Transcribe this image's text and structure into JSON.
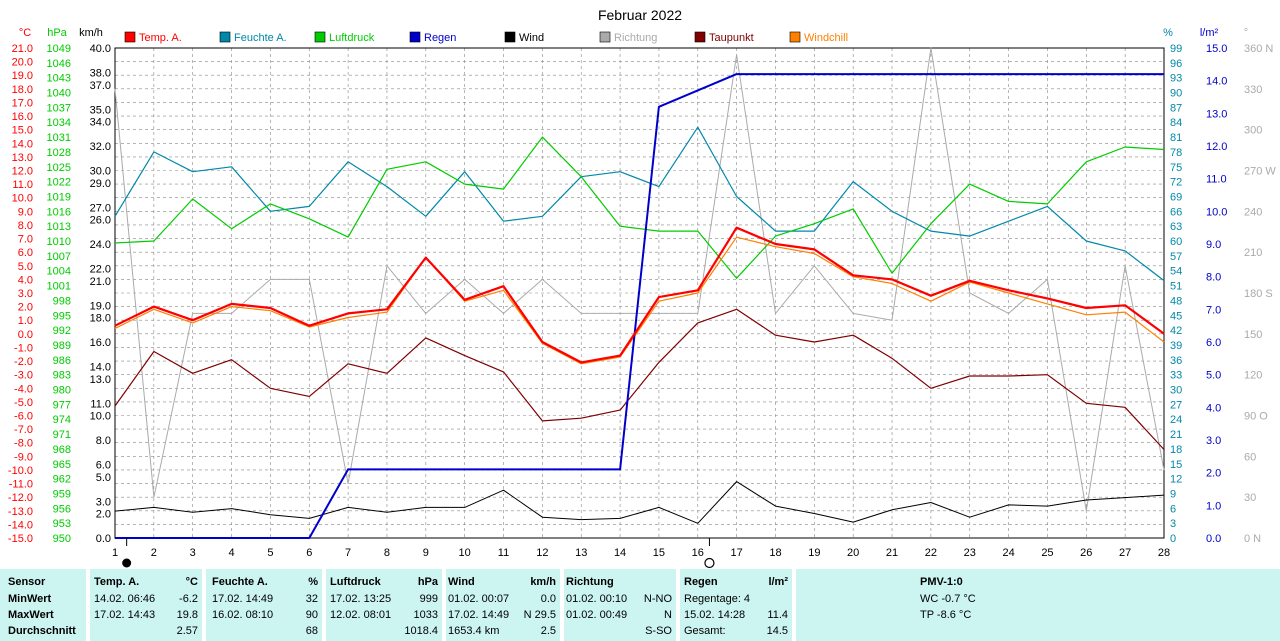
{
  "chart_data": {
    "type": "line",
    "title": "Februar 2022",
    "x": [
      1,
      2,
      3,
      4,
      5,
      6,
      7,
      8,
      9,
      10,
      11,
      12,
      13,
      14,
      15,
      16,
      17,
      18,
      19,
      20,
      21,
      22,
      23,
      24,
      25,
      26,
      27,
      28
    ],
    "xlim": [
      1,
      28
    ],
    "axes": {
      "temp": {
        "unit": "°C",
        "min": -15,
        "max": 21,
        "step": 1,
        "color": "#ff0000"
      },
      "pressure": {
        "unit": "hPa",
        "min": 950,
        "max": 1049,
        "step": 3,
        "color": "#00cc00"
      },
      "wind": {
        "unit": "km/h",
        "ticks": [
          0,
          2,
          3,
          5,
          6,
          8,
          10,
          11,
          13,
          14,
          16,
          18,
          19,
          21,
          22,
          24,
          26,
          27,
          29,
          30,
          32,
          34,
          35,
          37,
          38,
          40
        ],
        "max": 40
      },
      "humidity": {
        "unit": "%",
        "min": 0,
        "max": 99,
        "step": 3,
        "color": "#0088aa"
      },
      "rain": {
        "unit": "l/m²",
        "min": 0,
        "max": 15,
        "step": 1,
        "color": "#0000cc"
      },
      "direction": {
        "unit": "°",
        "ticks": [
          0,
          30,
          60,
          90,
          120,
          150,
          180,
          210,
          240,
          270,
          300,
          330,
          360
        ],
        "labels": [
          "0 N",
          "30",
          "60",
          "90 O",
          "120",
          "150",
          "180 S",
          "210",
          "240",
          "270 W",
          "300",
          "330",
          "360 N"
        ]
      }
    },
    "legend": [
      {
        "name": "Temp. A.",
        "color": "#ff0000"
      },
      {
        "name": "Feuchte A.",
        "color": "#0088aa"
      },
      {
        "name": "Luftdruck",
        "color": "#00cc00"
      },
      {
        "name": "Regen",
        "color": "#0000cc"
      },
      {
        "name": "Wind",
        "color": "#000000"
      },
      {
        "name": "Richtung",
        "color": "#aaaaaa"
      },
      {
        "name": "Taupunkt",
        "color": "#800000"
      },
      {
        "name": "Windchill",
        "color": "#ff8000"
      }
    ],
    "series": [
      {
        "name": "Temp. A.",
        "axis": "temp",
        "color": "#ff0000",
        "width": 2.2,
        "values": [
          0.6,
          2.0,
          1.0,
          2.2,
          1.9,
          0.6,
          1.5,
          1.8,
          5.6,
          2.5,
          3.5,
          -0.6,
          -2.1,
          -1.6,
          2.7,
          3.2,
          7.8,
          6.6,
          6.2,
          4.3,
          4.0,
          2.8,
          3.9,
          3.2,
          2.6,
          1.9,
          2.1,
          0.0
        ]
      },
      {
        "name": "Windchill",
        "axis": "temp",
        "color": "#ff8000",
        "width": 1.2,
        "values": [
          0.4,
          1.8,
          0.8,
          2.0,
          1.7,
          0.5,
          1.2,
          1.6,
          5.6,
          2.4,
          3.2,
          -0.7,
          -2.2,
          -1.7,
          2.4,
          3.0,
          7.1,
          6.4,
          5.9,
          4.2,
          3.7,
          2.4,
          3.8,
          3.0,
          2.2,
          1.4,
          1.6,
          -0.6
        ]
      },
      {
        "name": "Taupunkt",
        "axis": "temp",
        "color": "#800000",
        "width": 1.2,
        "values": [
          -5.3,
          -1.3,
          -2.9,
          -1.9,
          -4.0,
          -4.6,
          -2.2,
          -2.9,
          -0.3,
          -1.6,
          -2.8,
          -6.4,
          -6.2,
          -5.6,
          -2.1,
          0.8,
          1.8,
          -0.1,
          -0.6,
          -0.1,
          -1.8,
          -4.0,
          -3.1,
          -3.1,
          -3.0,
          -5.1,
          -5.4,
          -8.5
        ]
      },
      {
        "name": "Feuchte A.",
        "axis": "humidity",
        "color": "#0088aa",
        "width": 1.2,
        "values": [
          65,
          78,
          74,
          75,
          66,
          67,
          76,
          71,
          65,
          74,
          64,
          65,
          73,
          74,
          71,
          83,
          69,
          62,
          62,
          72,
          66,
          62,
          61,
          64,
          67,
          60,
          58,
          52
        ]
      },
      {
        "name": "Luftdruck",
        "axis": "pressure",
        "color": "#00cc00",
        "width": 1.2,
        "values": [
          1009.6,
          1010,
          1018.5,
          1012.5,
          1017.5,
          1014.5,
          1010.8,
          1024.5,
          1026,
          1021.5,
          1020.5,
          1031,
          1023,
          1013,
          1012,
          1012,
          1002.5,
          1011,
          1013.5,
          1016.5,
          1003.5,
          1013.5,
          1021.5,
          1018,
          1017.5,
          1026,
          1029,
          1028.5
        ]
      },
      {
        "name": "Regen",
        "axis": "rain",
        "color": "#0000cc",
        "width": 2,
        "x": [
          1,
          6,
          7,
          14,
          15,
          17,
          28
        ],
        "values": [
          0,
          0,
          2.1,
          2.1,
          13.2,
          14.2,
          14.2
        ]
      },
      {
        "name": "Wind",
        "axis": "wind",
        "color": "#000000",
        "width": 1,
        "values": [
          2.2,
          2.5,
          2.1,
          2.4,
          1.9,
          1.6,
          2.5,
          2.1,
          2.5,
          2.5,
          3.9,
          1.7,
          1.5,
          1.6,
          2.5,
          1.2,
          4.6,
          2.6,
          2.0,
          1.3,
          2.3,
          2.9,
          1.7,
          2.7,
          2.6,
          3.1,
          3.3,
          3.5
        ]
      },
      {
        "name": "Richtung",
        "axis": "direction",
        "color": "#aaaaaa",
        "width": 1,
        "values": [
          330,
          30,
          165,
          165,
          190,
          190,
          40,
          200,
          165,
          190,
          165,
          190,
          165,
          165,
          165,
          165,
          355,
          165,
          200,
          165,
          160,
          360,
          180,
          165,
          190,
          20,
          200,
          50
        ]
      }
    ]
  },
  "markers": {
    "sun_day": 1.3,
    "moon_day": 16.3
  },
  "stats": {
    "sensor": {
      "label": "Sensor",
      "rows": [
        "MinWert",
        "MaxWert",
        "Durchschnitt"
      ]
    },
    "temp": {
      "title": "Temp. A.",
      "unit": "°C",
      "min_dt": "14.02.  06:46",
      "min_v": "-6.2",
      "max_dt": "17.02.  14:43",
      "max_v": "19.8",
      "avg": "2.57"
    },
    "humid": {
      "title": "Feuchte A.",
      "unit": "%",
      "min_dt": "17.02.  14:49",
      "min_v": "32",
      "max_dt": "16.02.  08:10",
      "max_v": "90",
      "avg": "68"
    },
    "press": {
      "title": "Luftdruck",
      "unit": "hPa",
      "min_dt": "17.02.  13:25",
      "min_v": "999",
      "max_dt": "12.02.  08:01",
      "max_v": "1033",
      "avg": "1018.4"
    },
    "wind": {
      "title": "Wind",
      "unit": "km/h",
      "min_dt": "01.02.  00:07",
      "min_v": "0.0",
      "max_dt": "17.02.  14:49",
      "max_v": "N  29.5",
      "avg_km": "1653.4 km",
      "avg": "2.5"
    },
    "dir": {
      "title": "Richtung",
      "min_dt": "01.02.  00:10",
      "min_v": "N-NO",
      "max_dt": "01.02.  00:49",
      "max_v": "N",
      "avg": "S-SO"
    },
    "rain": {
      "title": "Regen",
      "unit": "l/m²",
      "days": "Regentage: 4",
      "max_dt": "15.02.  14:28",
      "max_v": "11.4",
      "total_label": "Gesamt:",
      "total": "14.5"
    },
    "pmv": {
      "title": "PMV-1:0",
      "wc": "WC -0.7 °C",
      "tp": "TP -8.6 °C"
    }
  }
}
